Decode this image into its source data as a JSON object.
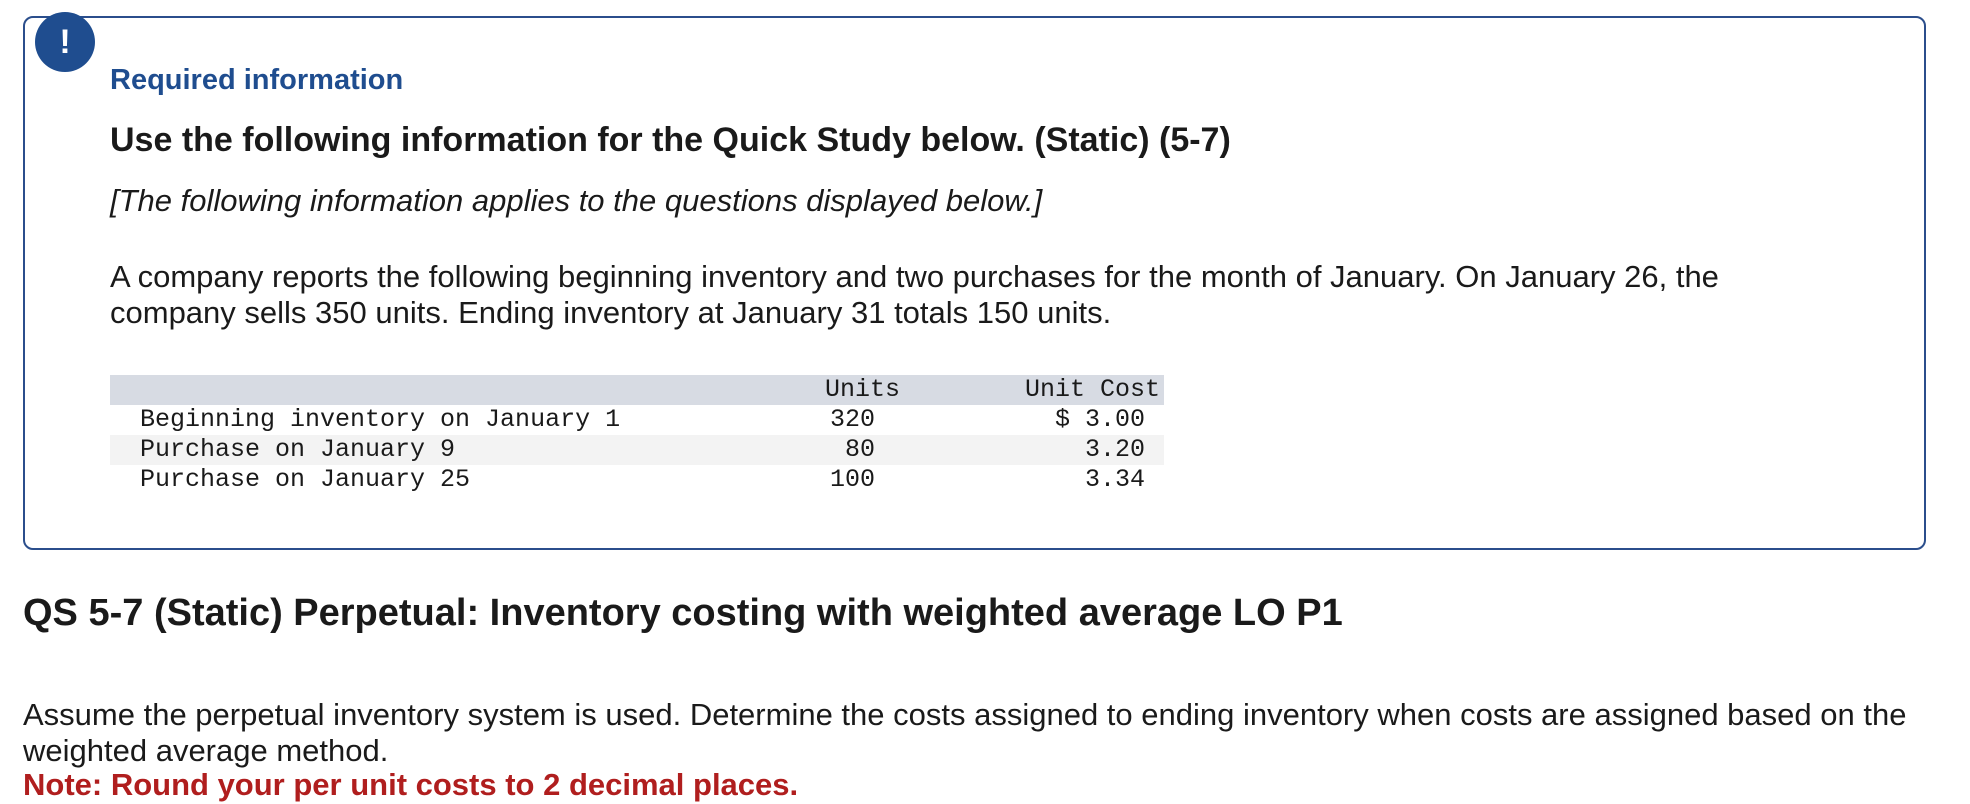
{
  "info_box": {
    "badge": "!",
    "title": "Required information",
    "heading": "Use the following information for the Quick Study below. (Static) (5-7)",
    "applies_note": "[The following information applies to the questions displayed below.]",
    "intro": "A company reports the following beginning inventory and two purchases for the month of January. On January 26, the company sells 350 units. Ending inventory at January 31 totals 150 units.",
    "table": {
      "headers": {
        "units": "Units",
        "unit_cost": "Unit Cost"
      },
      "rows": [
        {
          "label": "Beginning inventory on January 1",
          "units": "320",
          "unit_cost": "$ 3.00"
        },
        {
          "label": "Purchase on January 9",
          "units": "80",
          "unit_cost": "3.20"
        },
        {
          "label": "Purchase on January 25",
          "units": "100",
          "unit_cost": "3.34"
        }
      ]
    }
  },
  "question": {
    "heading": "QS 5-7 (Static) Perpetual: Inventory costing with weighted average LO P1",
    "body": "Assume the perpetual inventory system is used. Determine the costs assigned to ending inventory when costs are assigned based on the weighted average method.",
    "note": "Note: Round your per unit costs to 2 decimal places."
  },
  "colors": {
    "accent_blue": "#1f4d8f",
    "note_red": "#b01e1e",
    "table_header": "#d7dbe3"
  }
}
